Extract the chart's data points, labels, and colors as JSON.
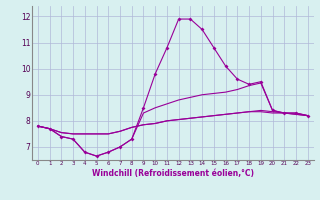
{
  "x_hours": [
    0,
    1,
    2,
    3,
    4,
    5,
    6,
    7,
    8,
    9,
    10,
    11,
    12,
    13,
    14,
    15,
    16,
    17,
    18,
    19,
    20,
    21,
    22,
    23
  ],
  "line1_main": [
    7.8,
    7.7,
    7.4,
    7.3,
    6.8,
    6.65,
    6.8,
    7.0,
    7.3,
    8.5,
    9.8,
    10.8,
    11.9,
    11.9,
    11.5,
    10.8,
    10.1,
    9.6,
    9.4,
    9.5,
    8.4,
    8.3,
    8.3,
    8.2
  ],
  "line2": [
    7.8,
    7.7,
    7.4,
    7.3,
    6.8,
    6.65,
    6.8,
    7.0,
    7.3,
    8.3,
    8.5,
    8.65,
    8.8,
    8.9,
    9.0,
    9.05,
    9.1,
    9.2,
    9.35,
    9.45,
    8.4,
    8.3,
    8.3,
    8.2
  ],
  "line3": [
    7.8,
    7.7,
    7.55,
    7.5,
    7.5,
    7.5,
    7.5,
    7.6,
    7.75,
    7.85,
    7.9,
    8.0,
    8.05,
    8.1,
    8.15,
    8.2,
    8.25,
    8.3,
    8.35,
    8.35,
    8.3,
    8.3,
    8.25,
    8.2
  ],
  "line4": [
    7.8,
    7.7,
    7.55,
    7.5,
    7.5,
    7.5,
    7.5,
    7.6,
    7.75,
    7.85,
    7.9,
    8.0,
    8.05,
    8.1,
    8.15,
    8.2,
    8.25,
    8.3,
    8.35,
    8.4,
    8.35,
    8.3,
    8.25,
    8.2
  ],
  "line_color": "#990099",
  "bg_color": "#d8f0f0",
  "grid_color": "#b0b8d8",
  "ylabel_ticks": [
    7,
    8,
    9,
    10,
    11,
    12
  ],
  "xlabel": "Windchill (Refroidissement éolien,°C)",
  "ylim": [
    6.5,
    12.4
  ],
  "xlim": [
    -0.5,
    23.5
  ]
}
